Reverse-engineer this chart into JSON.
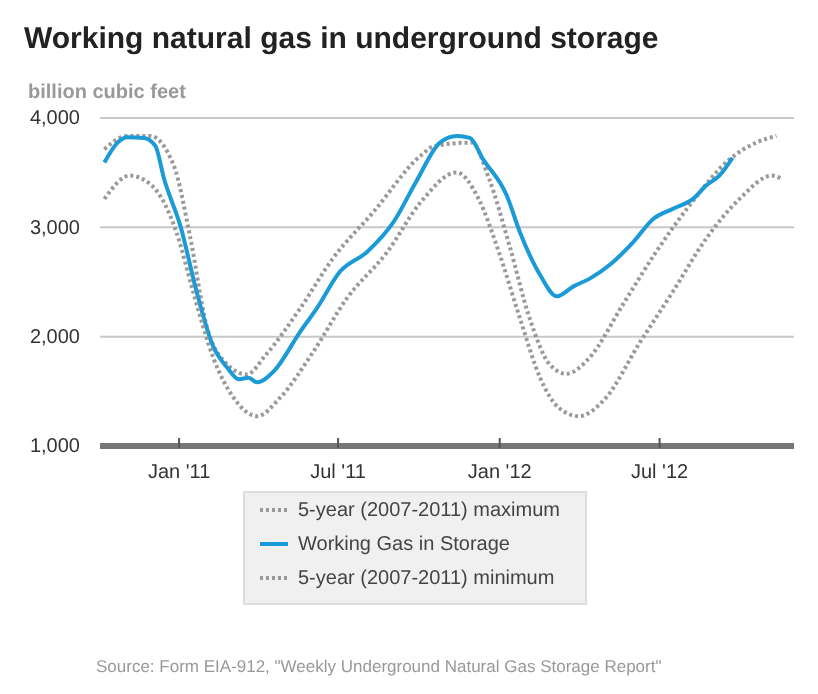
{
  "chart_data": {
    "type": "line",
    "title": "Working natural gas in underground storage",
    "ylabel": "billion cubic feet",
    "xlim": [
      "2010-10-03",
      "2012-12-01"
    ],
    "ylim": [
      1000,
      4000
    ],
    "xticks": [
      {
        "value": "2011-01-01",
        "label": "Jan '11"
      },
      {
        "value": "2011-07-01",
        "label": "Jul '11"
      },
      {
        "value": "2012-01-01",
        "label": "Jan '12"
      },
      {
        "value": "2012-07-01",
        "label": "Jul '12"
      }
    ],
    "yticks": [
      {
        "value": 1000,
        "label": "1,000"
      },
      {
        "value": 2000,
        "label": "2,000"
      },
      {
        "value": 3000,
        "label": "3,000"
      },
      {
        "value": 4000,
        "label": "4,000"
      }
    ],
    "grid": "y",
    "legend": "bottom",
    "series": [
      {
        "name": "5-year (2007-2011) maximum",
        "color": "#999999",
        "line_style": "dotted",
        "x": [
          "2010-10-08",
          "2010-11-03",
          "2010-11-29",
          "2010-12-26",
          "2011-01-14",
          "2011-02-01",
          "2011-02-25",
          "2011-03-19",
          "2011-04-10",
          "2011-05-19",
          "2011-06-25",
          "2011-08-10",
          "2011-10-03",
          "2011-10-19",
          "2011-11-30",
          "2011-12-20",
          "2012-01-12",
          "2012-02-04",
          "2012-02-27",
          "2012-03-17",
          "2012-04-12",
          "2012-05-20",
          "2012-06-27",
          "2012-08-04",
          "2012-09-19",
          "2012-10-19",
          "2012-11-11"
        ],
        "values": [
          3715,
          3836,
          3836,
          3564,
          2896,
          2109,
          1745,
          1655,
          1836,
          2260,
          2715,
          3138,
          3655,
          3745,
          3775,
          3442,
          2836,
          2169,
          1745,
          1660,
          1806,
          2291,
          2775,
          3200,
          3624,
          3775,
          3836
        ]
      },
      {
        "name": "Working Gas in Storage",
        "color": "#1a9ad6",
        "line_style": "solid",
        "x": [
          "2010-10-08",
          "2010-10-23",
          "2010-11-03",
          "2010-11-22",
          "2010-12-05",
          "2010-12-15",
          "2011-01-03",
          "2011-01-21",
          "2011-02-08",
          "2011-02-25",
          "2011-03-10",
          "2011-03-21",
          "2011-03-31",
          "2011-04-19",
          "2011-05-19",
          "2011-06-07",
          "2011-07-03",
          "2011-08-03",
          "2011-09-02",
          "2011-09-28",
          "2011-10-25",
          "2011-11-13",
          "2011-11-28",
          "2011-12-13",
          "2012-01-09",
          "2012-01-24",
          "2012-02-16",
          "2012-03-06",
          "2012-03-25",
          "2012-04-13",
          "2012-05-05",
          "2012-06-01",
          "2012-06-24",
          "2012-07-16",
          "2012-08-08",
          "2012-08-23",
          "2012-09-07",
          "2012-09-22"
        ],
        "values": [
          3593,
          3775,
          3824,
          3818,
          3745,
          3442,
          3000,
          2411,
          1927,
          1715,
          1611,
          1624,
          1582,
          1685,
          2047,
          2260,
          2593,
          2775,
          3047,
          3420,
          3775,
          3836,
          3818,
          3624,
          3291,
          2956,
          2564,
          2369,
          2460,
          2533,
          2655,
          2865,
          3078,
          3169,
          3260,
          3382,
          3473,
          3636
        ]
      },
      {
        "name": "5-year (2007-2011) minimum",
        "color": "#999999",
        "line_style": "dotted",
        "x": [
          "2010-10-08",
          "2010-11-06",
          "2010-12-01",
          "2010-12-29",
          "2011-01-17",
          "2011-02-09",
          "2011-03-04",
          "2011-03-31",
          "2011-04-26",
          "2011-06-03",
          "2011-07-11",
          "2011-08-26",
          "2011-10-03",
          "2011-11-13",
          "2011-12-08",
          "2011-12-31",
          "2012-01-24",
          "2012-02-16",
          "2012-03-08",
          "2012-03-31",
          "2012-05-01",
          "2012-06-07",
          "2012-07-16",
          "2012-08-23",
          "2012-09-30",
          "2012-11-06",
          "2012-11-17"
        ],
        "values": [
          3260,
          3473,
          3382,
          2956,
          2411,
          1806,
          1442,
          1273,
          1442,
          1865,
          2351,
          2775,
          3229,
          3502,
          3260,
          2775,
          2169,
          1624,
          1351,
          1273,
          1442,
          1927,
          2411,
          2896,
          3260,
          3473,
          3442
        ]
      }
    ],
    "annotations": [
      "Source: Form EIA-912, \"Weekly Underground Natural Gas Storage Report\""
    ]
  }
}
